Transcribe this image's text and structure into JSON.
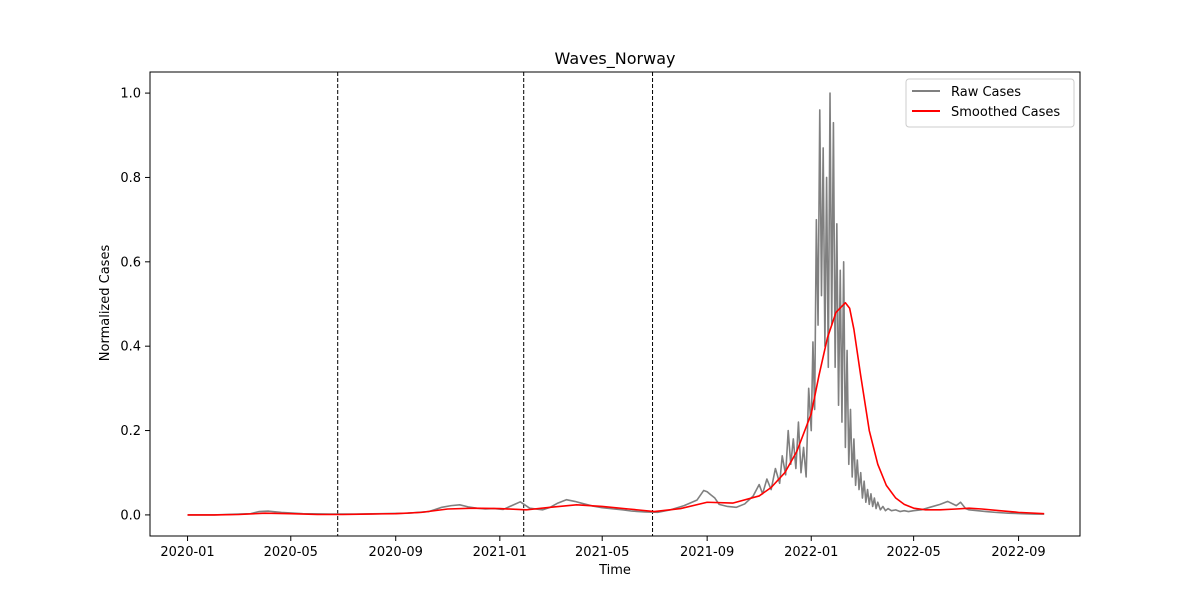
{
  "chart_data": {
    "type": "line",
    "title": "Waves_Norway",
    "xlabel": "Time",
    "ylabel": "Normalized Cases",
    "x_range": [
      "2019-11-18",
      "2022-11-12"
    ],
    "ylim": [
      -0.05,
      1.05
    ],
    "xticks": [
      "2020-01",
      "2020-05",
      "2020-09",
      "2021-01",
      "2021-05",
      "2021-09",
      "2022-01",
      "2022-05",
      "2022-09"
    ],
    "yticks": [
      "0.0",
      "0.2",
      "0.4",
      "0.6",
      "0.8",
      "1.0"
    ],
    "grid": false,
    "legend": {
      "position": "upper right",
      "entries": [
        {
          "label": "Raw Cases",
          "color": "#808080"
        },
        {
          "label": "Smoothed Cases",
          "color": "#ff0000"
        }
      ]
    },
    "wave_boundaries": [
      "2020-06-25",
      "2021-01-29",
      "2021-06-29"
    ],
    "series": [
      {
        "name": "Raw Cases",
        "color": "#808080",
        "x": [
          "2020-01-01",
          "2020-02-01",
          "2020-03-01",
          "2020-03-15",
          "2020-03-25",
          "2020-04-05",
          "2020-04-20",
          "2020-05-15",
          "2020-06-15",
          "2020-07-15",
          "2020-08-15",
          "2020-09-15",
          "2020-10-10",
          "2020-10-25",
          "2020-11-05",
          "2020-11-15",
          "2020-11-25",
          "2020-12-05",
          "2020-12-15",
          "2020-12-25",
          "2021-01-05",
          "2021-01-15",
          "2021-01-25",
          "2021-02-05",
          "2021-02-20",
          "2021-03-01",
          "2021-03-10",
          "2021-03-20",
          "2021-03-30",
          "2021-04-10",
          "2021-04-20",
          "2021-05-01",
          "2021-05-15",
          "2021-05-25",
          "2021-06-05",
          "2021-06-20",
          "2021-07-05",
          "2021-07-20",
          "2021-08-05",
          "2021-08-20",
          "2021-08-28",
          "2021-09-01",
          "2021-09-05",
          "2021-09-10",
          "2021-09-15",
          "2021-09-25",
          "2021-10-05",
          "2021-10-15",
          "2021-10-25",
          "2021-11-01",
          "2021-11-05",
          "2021-11-10",
          "2021-11-15",
          "2021-11-20",
          "2021-11-25",
          "2021-11-28",
          "2021-12-02",
          "2021-12-05",
          "2021-12-08",
          "2021-12-11",
          "2021-12-14",
          "2021-12-17",
          "2021-12-20",
          "2021-12-23",
          "2021-12-26",
          "2021-12-29",
          "2022-01-01",
          "2022-01-03",
          "2022-01-05",
          "2022-01-07",
          "2022-01-09",
          "2022-01-11",
          "2022-01-13",
          "2022-01-15",
          "2022-01-17",
          "2022-01-19",
          "2022-01-21",
          "2022-01-23",
          "2022-01-25",
          "2022-01-27",
          "2022-01-29",
          "2022-01-31",
          "2022-02-02",
          "2022-02-04",
          "2022-02-06",
          "2022-02-08",
          "2022-02-10",
          "2022-02-12",
          "2022-02-14",
          "2022-02-16",
          "2022-02-18",
          "2022-02-20",
          "2022-02-22",
          "2022-02-24",
          "2022-02-26",
          "2022-02-28",
          "2022-03-02",
          "2022-03-04",
          "2022-03-06",
          "2022-03-08",
          "2022-03-10",
          "2022-03-12",
          "2022-03-14",
          "2022-03-16",
          "2022-03-18",
          "2022-03-20",
          "2022-03-23",
          "2022-03-26",
          "2022-03-29",
          "2022-04-01",
          "2022-04-05",
          "2022-04-10",
          "2022-04-15",
          "2022-04-20",
          "2022-04-25",
          "2022-05-01",
          "2022-05-10",
          "2022-05-20",
          "2022-06-01",
          "2022-06-10",
          "2022-06-20",
          "2022-06-25",
          "2022-07-01",
          "2022-07-05",
          "2022-07-15",
          "2022-07-25",
          "2022-08-05",
          "2022-08-20",
          "2022-09-05",
          "2022-09-20",
          "2022-10-01"
        ],
        "y": [
          0,
          0,
          0.002,
          0.003,
          0.008,
          0.009,
          0.006,
          0.003,
          0.002,
          0.002,
          0.003,
          0.004,
          0.008,
          0.018,
          0.022,
          0.024,
          0.019,
          0.016,
          0.014,
          0.015,
          0.013,
          0.022,
          0.031,
          0.016,
          0.012,
          0.018,
          0.028,
          0.036,
          0.032,
          0.026,
          0.021,
          0.017,
          0.014,
          0.012,
          0.009,
          0.007,
          0.006,
          0.012,
          0.022,
          0.035,
          0.058,
          0.055,
          0.048,
          0.04,
          0.025,
          0.02,
          0.018,
          0.026,
          0.045,
          0.072,
          0.05,
          0.085,
          0.06,
          0.11,
          0.075,
          0.14,
          0.095,
          0.2,
          0.12,
          0.18,
          0.11,
          0.22,
          0.1,
          0.16,
          0.09,
          0.3,
          0.2,
          0.41,
          0.25,
          0.7,
          0.45,
          0.96,
          0.52,
          0.87,
          0.4,
          0.8,
          0.35,
          1.0,
          0.45,
          0.93,
          0.35,
          0.69,
          0.26,
          0.58,
          0.22,
          0.6,
          0.16,
          0.39,
          0.12,
          0.25,
          0.09,
          0.18,
          0.07,
          0.13,
          0.06,
          0.1,
          0.04,
          0.08,
          0.03,
          0.06,
          0.025,
          0.05,
          0.02,
          0.04,
          0.015,
          0.03,
          0.012,
          0.02,
          0.01,
          0.015,
          0.01,
          0.012,
          0.008,
          0.01,
          0.008,
          0.01,
          0.012,
          0.018,
          0.025,
          0.032,
          0.022,
          0.03,
          0.015,
          0.012,
          0.01,
          0.008,
          0.006,
          0.004,
          0.003,
          0.002,
          0.002
        ]
      },
      {
        "name": "Smoothed Cases",
        "color": "#ff0000",
        "x": [
          "2020-01-01",
          "2020-02-01",
          "2020-03-01",
          "2020-04-01",
          "2020-05-01",
          "2020-06-01",
          "2020-07-01",
          "2020-08-01",
          "2020-09-01",
          "2020-10-01",
          "2020-11-01",
          "2020-12-01",
          "2021-01-01",
          "2021-02-01",
          "2021-03-01",
          "2021-04-01",
          "2021-05-01",
          "2021-06-01",
          "2021-07-01",
          "2021-08-01",
          "2021-09-01",
          "2021-10-01",
          "2021-11-01",
          "2021-11-15",
          "2021-12-01",
          "2021-12-15",
          "2022-01-01",
          "2022-01-10",
          "2022-01-20",
          "2022-01-30",
          "2022-02-10",
          "2022-02-15",
          "2022-02-20",
          "2022-02-28",
          "2022-03-10",
          "2022-03-20",
          "2022-03-30",
          "2022-04-10",
          "2022-04-20",
          "2022-05-01",
          "2022-05-15",
          "2022-06-01",
          "2022-06-20",
          "2022-07-05",
          "2022-07-20",
          "2022-08-10",
          "2022-09-01",
          "2022-10-01"
        ],
        "y": [
          0,
          0,
          0.001,
          0.004,
          0.003,
          0.001,
          0.001,
          0.002,
          0.003,
          0.006,
          0.014,
          0.016,
          0.015,
          0.012,
          0.018,
          0.024,
          0.02,
          0.014,
          0.008,
          0.015,
          0.03,
          0.028,
          0.045,
          0.065,
          0.1,
          0.15,
          0.24,
          0.33,
          0.42,
          0.48,
          0.503,
          0.49,
          0.44,
          0.33,
          0.2,
          0.12,
          0.07,
          0.04,
          0.025,
          0.016,
          0.012,
          0.012,
          0.014,
          0.016,
          0.014,
          0.01,
          0.006,
          0.003
        ]
      }
    ]
  }
}
